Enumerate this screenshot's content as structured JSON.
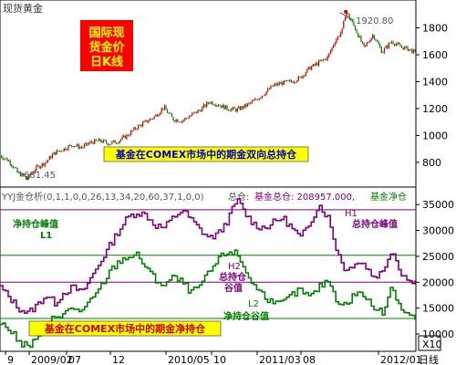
{
  "header": {
    "title": "现货黄金"
  },
  "price_panel": {
    "badge_lines": [
      "国际现",
      "货金价",
      "日K线"
    ],
    "high_label": "1920.80",
    "low_label": "681.45",
    "yticks": [
      800,
      1000,
      1200,
      1400,
      1600,
      1800
    ]
  },
  "title_banner": {
    "text": "基金在COMEX市场中的期金双向总持仓"
  },
  "indicator": {
    "name": "YYJ金仓析(0,1,1,0,0,26,13,34,20,60,37,1,0,0)",
    "legend_total_prefix": "总仓: ",
    "legend_fund_label": "基金总仓: 208957.000,",
    "legend_net_label": "基金净仓",
    "yticks": [
      10000,
      15000,
      20000,
      25000,
      30000,
      35000
    ],
    "scale_label": "X10",
    "ann": {
      "h1_a": "H1",
      "h1_b": "总持仓峰值",
      "net_peak": "净持仓峰值",
      "l1": "L1",
      "h2_a": "H2",
      "h2_b": "总持仓",
      "h2_c": "谷值",
      "l2": "L2",
      "l2_b": "净持仓谷值",
      "net_banner": "基金在COMEX市场中的期金净持仓"
    }
  },
  "xaxis": {
    "labels": [
      "9",
      "2009/02",
      "07",
      "12",
      "2010/05",
      "10",
      "2011/03",
      "08",
      "2012/01"
    ],
    "unit": "日线"
  },
  "chart_data": [
    {
      "type": "line",
      "title": "国际现货金价日K线",
      "ylim": [
        650,
        1980
      ],
      "series": [
        {
          "name": "现货黄金",
          "x": [
            0,
            10,
            20,
            30,
            40,
            50,
            60,
            70,
            80,
            90,
            100,
            110,
            120,
            130,
            140,
            150,
            160,
            170,
            180,
            190,
            200,
            210,
            220,
            230,
            240,
            250,
            260,
            270,
            280,
            290,
            300,
            310,
            320,
            330,
            340,
            350,
            360,
            368,
            376,
            380,
            390,
            400,
            410,
            420,
            430,
            440,
            450,
            457
          ],
          "y": [
            850,
            810,
            720,
            681,
            760,
            800,
            870,
            900,
            930,
            910,
            950,
            960,
            940,
            960,
            1000,
            1060,
            1100,
            1140,
            1210,
            1120,
            1110,
            1150,
            1190,
            1250,
            1230,
            1200,
            1190,
            1220,
            1260,
            1310,
            1370,
            1390,
            1400,
            1430,
            1500,
            1540,
            1580,
            1700,
            1780,
            1920,
            1800,
            1650,
            1750,
            1620,
            1700,
            1660,
            1640,
            1610
          ]
        }
      ]
    },
    {
      "type": "line",
      "title": "基金在COMEX市场中的期金双向总持仓 / 净持仓",
      "ylim": [
        7000,
        37500
      ],
      "scale": "X10",
      "series": [
        {
          "name": "基金总仓",
          "x": [
            0,
            10,
            20,
            30,
            40,
            50,
            60,
            70,
            80,
            90,
            100,
            110,
            120,
            130,
            140,
            150,
            160,
            170,
            180,
            190,
            200,
            210,
            220,
            230,
            240,
            250,
            260,
            270,
            280,
            290,
            300,
            310,
            320,
            330,
            340,
            350,
            360,
            370,
            380,
            390,
            400,
            410,
            420,
            430,
            440,
            450,
            457
          ],
          "y": [
            19000,
            17000,
            15000,
            14000,
            15500,
            17500,
            16000,
            18000,
            19000,
            18000,
            21000,
            24000,
            27000,
            30000,
            32500,
            33500,
            33000,
            31000,
            30500,
            32500,
            34000,
            32000,
            30000,
            28500,
            29500,
            32000,
            36000,
            33000,
            31000,
            30500,
            31500,
            32500,
            30500,
            28500,
            31500,
            35000,
            32500,
            26000,
            22000,
            24000,
            23500,
            21000,
            22000,
            26500,
            22000,
            20000,
            21000
          ]
        },
        {
          "name": "基金净仓",
          "x": [
            0,
            10,
            20,
            30,
            40,
            50,
            60,
            70,
            80,
            90,
            100,
            110,
            120,
            130,
            140,
            150,
            160,
            170,
            180,
            190,
            200,
            210,
            220,
            230,
            240,
            250,
            260,
            270,
            280,
            290,
            300,
            310,
            320,
            330,
            340,
            350,
            360,
            370,
            380,
            390,
            400,
            410,
            420,
            430,
            440,
            450,
            457
          ],
          "y": [
            12000,
            11000,
            8500,
            7500,
            9000,
            11500,
            13500,
            14000,
            15000,
            14500,
            16500,
            19000,
            22000,
            24000,
            25000,
            25200,
            23000,
            20500,
            19500,
            21000,
            20000,
            18000,
            19500,
            22000,
            24500,
            26000,
            25500,
            22000,
            19000,
            17500,
            15500,
            16000,
            17500,
            18500,
            17000,
            19000,
            20500,
            16500,
            15500,
            18000,
            17500,
            15000,
            14000,
            19500,
            15000,
            13500,
            13000
          ]
        }
      ]
    }
  ]
}
